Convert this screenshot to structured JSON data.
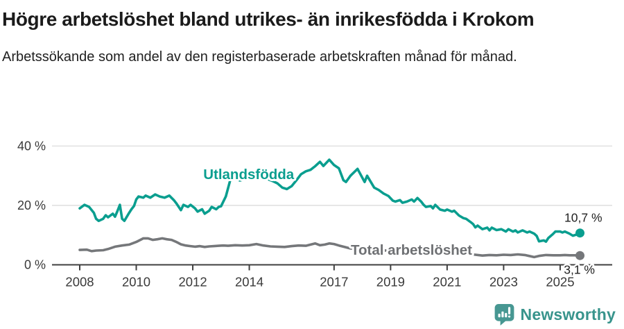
{
  "title": "Högre arbetslöshet bland utrikes- än inrikesfödda i Krokom",
  "subtitle": "Arbetssökande som andel av den registerbaserade arbetskraften månad för månad.",
  "footer": {
    "brand": "Newsworthy"
  },
  "colors": {
    "foreign_line": "#0a9e8f",
    "total_line": "#75777a",
    "total_label": "#6e7073",
    "value_label": "#1f1f1f",
    "axis": "#3f3f3f",
    "axis_text": "#3a3a3a",
    "grid": "#dcdcdc",
    "brand": "#38948c"
  },
  "chart_data": {
    "type": "line",
    "title": "Högre arbetslöshet bland utrikes- än inrikesfödda i Krokom",
    "subtitle": "Arbetssökande som andel av den registerbaserade arbetskraften månad för månad.",
    "unit": "%",
    "ylim": [
      0,
      40
    ],
    "xlim": [
      2007.5,
      2026.3
    ],
    "grid": "horizontal-only",
    "legend_position": "inline-labels",
    "colors": {
      "grid": "#dcdcdc",
      "axis": "#3f3f3f",
      "axis_text": "#3a3a3a"
    },
    "y_axis": {
      "ticks": [
        {
          "value": 0,
          "label": "0 %"
        },
        {
          "value": 20,
          "label": "20 %"
        },
        {
          "value": 40,
          "label": "40 %"
        }
      ]
    },
    "x_axis": {
      "ticks": [
        {
          "value": 2008,
          "label": "2008"
        },
        {
          "value": 2010,
          "label": "2010"
        },
        {
          "value": 2012,
          "label": "2012"
        },
        {
          "value": 2014,
          "label": "2014"
        },
        {
          "value": 2017,
          "label": "2017"
        },
        {
          "value": 2019,
          "label": "2019"
        },
        {
          "value": 2021,
          "label": "2021"
        },
        {
          "value": 2023,
          "label": "2023"
        },
        {
          "value": 2025,
          "label": "2025"
        }
      ]
    },
    "series": [
      {
        "id": "utlandsfodda",
        "name": "Utlandsfödda",
        "color": "#0a9e8f",
        "end_value_label": "10,7 %",
        "points": [
          [
            2008.0,
            19.0
          ],
          [
            2008.17,
            20.2
          ],
          [
            2008.33,
            19.5
          ],
          [
            2008.5,
            17.5
          ],
          [
            2008.58,
            15.5
          ],
          [
            2008.67,
            14.8
          ],
          [
            2008.83,
            15.5
          ],
          [
            2008.92,
            16.7
          ],
          [
            2009.0,
            16.0
          ],
          [
            2009.17,
            17.2
          ],
          [
            2009.25,
            16.2
          ],
          [
            2009.33,
            18.0
          ],
          [
            2009.42,
            20.2
          ],
          [
            2009.5,
            15.5
          ],
          [
            2009.58,
            14.8
          ],
          [
            2009.75,
            17.5
          ],
          [
            2009.83,
            18.7
          ],
          [
            2009.92,
            19.8
          ],
          [
            2010.0,
            22.0
          ],
          [
            2010.08,
            23.0
          ],
          [
            2010.25,
            22.6
          ],
          [
            2010.33,
            23.3
          ],
          [
            2010.5,
            22.6
          ],
          [
            2010.67,
            23.7
          ],
          [
            2010.83,
            23.0
          ],
          [
            2011.0,
            22.6
          ],
          [
            2011.17,
            23.3
          ],
          [
            2011.33,
            21.8
          ],
          [
            2011.42,
            20.7
          ],
          [
            2011.58,
            18.4
          ],
          [
            2011.67,
            20.2
          ],
          [
            2011.83,
            19.5
          ],
          [
            2011.92,
            20.2
          ],
          [
            2012.08,
            19.0
          ],
          [
            2012.17,
            17.9
          ],
          [
            2012.33,
            18.7
          ],
          [
            2012.42,
            17.2
          ],
          [
            2012.58,
            18.2
          ],
          [
            2012.67,
            19.5
          ],
          [
            2012.83,
            18.7
          ],
          [
            2012.92,
            19.5
          ],
          [
            2013.0,
            19.7
          ],
          [
            2013.17,
            23.0
          ],
          [
            2013.33,
            28.7
          ],
          [
            2013.5,
            29.0
          ],
          [
            2013.67,
            28.4
          ],
          [
            2013.83,
            28.8
          ],
          [
            2014.0,
            29.5
          ],
          [
            2014.17,
            30.0
          ],
          [
            2014.33,
            29.0
          ],
          [
            2014.5,
            29.6
          ],
          [
            2014.67,
            28.8
          ],
          [
            2014.83,
            28.2
          ],
          [
            2015.0,
            27.4
          ],
          [
            2015.17,
            26.0
          ],
          [
            2015.33,
            25.5
          ],
          [
            2015.5,
            26.5
          ],
          [
            2015.67,
            28.5
          ],
          [
            2015.83,
            30.5
          ],
          [
            2016.0,
            31.5
          ],
          [
            2016.17,
            32.0
          ],
          [
            2016.33,
            33.2
          ],
          [
            2016.5,
            34.7
          ],
          [
            2016.62,
            33.3
          ],
          [
            2016.83,
            35.4
          ],
          [
            2017.0,
            33.6
          ],
          [
            2017.17,
            32.5
          ],
          [
            2017.33,
            28.5
          ],
          [
            2017.42,
            27.9
          ],
          [
            2017.58,
            30.0
          ],
          [
            2017.83,
            32.3
          ],
          [
            2018.08,
            27.9
          ],
          [
            2018.17,
            30.0
          ],
          [
            2018.42,
            26.0
          ],
          [
            2018.58,
            25.2
          ],
          [
            2018.75,
            24.0
          ],
          [
            2018.92,
            23.2
          ],
          [
            2019.08,
            21.6
          ],
          [
            2019.17,
            21.3
          ],
          [
            2019.33,
            21.8
          ],
          [
            2019.42,
            20.9
          ],
          [
            2019.58,
            21.3
          ],
          [
            2019.75,
            22.0
          ],
          [
            2019.83,
            21.3
          ],
          [
            2019.95,
            22.5
          ],
          [
            2020.08,
            21.3
          ],
          [
            2020.17,
            20.2
          ],
          [
            2020.25,
            19.5
          ],
          [
            2020.42,
            19.8
          ],
          [
            2020.5,
            19.0
          ],
          [
            2020.58,
            20.2
          ],
          [
            2020.75,
            18.6
          ],
          [
            2020.92,
            18.2
          ],
          [
            2021.0,
            18.6
          ],
          [
            2021.17,
            17.9
          ],
          [
            2021.25,
            18.2
          ],
          [
            2021.42,
            16.6
          ],
          [
            2021.58,
            15.7
          ],
          [
            2021.67,
            15.5
          ],
          [
            2021.83,
            14.4
          ],
          [
            2021.92,
            13.7
          ],
          [
            2022.0,
            12.6
          ],
          [
            2022.08,
            13.2
          ],
          [
            2022.25,
            12.0
          ],
          [
            2022.42,
            12.5
          ],
          [
            2022.5,
            11.6
          ],
          [
            2022.58,
            12.5
          ],
          [
            2022.75,
            11.7
          ],
          [
            2022.92,
            12.0
          ],
          [
            2023.08,
            11.2
          ],
          [
            2023.17,
            12.0
          ],
          [
            2023.33,
            11.2
          ],
          [
            2023.42,
            11.6
          ],
          [
            2023.5,
            10.9
          ],
          [
            2023.67,
            11.6
          ],
          [
            2023.83,
            10.9
          ],
          [
            2023.92,
            11.2
          ],
          [
            2024.08,
            10.5
          ],
          [
            2024.17,
            9.7
          ],
          [
            2024.25,
            7.9
          ],
          [
            2024.42,
            8.2
          ],
          [
            2024.5,
            7.8
          ],
          [
            2024.58,
            9.0
          ],
          [
            2024.75,
            10.4
          ],
          [
            2024.83,
            11.2
          ],
          [
            2025.0,
            11.2
          ],
          [
            2025.08,
            10.9
          ],
          [
            2025.17,
            11.2
          ],
          [
            2025.33,
            10.5
          ],
          [
            2025.45,
            9.8
          ],
          [
            2025.58,
            10.2
          ],
          [
            2025.7,
            10.7
          ]
        ]
      },
      {
        "id": "total",
        "name": "Total arbetslöshet",
        "color": "#75777a",
        "end_value_label": "3,1 %",
        "points": [
          [
            2008.0,
            5.0
          ],
          [
            2008.25,
            5.1
          ],
          [
            2008.42,
            4.6
          ],
          [
            2008.58,
            4.8
          ],
          [
            2008.83,
            4.9
          ],
          [
            2009.0,
            5.3
          ],
          [
            2009.25,
            6.1
          ],
          [
            2009.5,
            6.5
          ],
          [
            2009.75,
            6.8
          ],
          [
            2010.0,
            7.7
          ],
          [
            2010.17,
            8.5
          ],
          [
            2010.25,
            8.9
          ],
          [
            2010.42,
            8.9
          ],
          [
            2010.58,
            8.4
          ],
          [
            2010.75,
            8.6
          ],
          [
            2010.92,
            8.9
          ],
          [
            2011.08,
            8.6
          ],
          [
            2011.25,
            8.4
          ],
          [
            2011.42,
            7.7
          ],
          [
            2011.58,
            6.9
          ],
          [
            2011.75,
            6.5
          ],
          [
            2011.92,
            6.3
          ],
          [
            2012.08,
            6.1
          ],
          [
            2012.25,
            6.3
          ],
          [
            2012.42,
            6.0
          ],
          [
            2012.58,
            6.2
          ],
          [
            2012.75,
            6.3
          ],
          [
            2012.92,
            6.4
          ],
          [
            2013.08,
            6.5
          ],
          [
            2013.25,
            6.4
          ],
          [
            2013.5,
            6.6
          ],
          [
            2013.75,
            6.5
          ],
          [
            2014.0,
            6.6
          ],
          [
            2014.25,
            7.0
          ],
          [
            2014.5,
            6.5
          ],
          [
            2014.75,
            6.2
          ],
          [
            2015.0,
            6.1
          ],
          [
            2015.25,
            6.0
          ],
          [
            2015.5,
            6.3
          ],
          [
            2015.75,
            6.5
          ],
          [
            2016.0,
            6.4
          ],
          [
            2016.17,
            6.8
          ],
          [
            2016.33,
            7.2
          ],
          [
            2016.5,
            6.6
          ],
          [
            2016.67,
            6.8
          ],
          [
            2016.83,
            7.2
          ],
          [
            2017.0,
            7.0
          ],
          [
            2017.17,
            6.5
          ],
          [
            2017.33,
            6.1
          ],
          [
            2017.58,
            5.5
          ],
          [
            2017.83,
            5.3
          ],
          [
            2018.0,
            5.2
          ],
          [
            2018.5,
            5.0
          ],
          [
            2019.0,
            4.7
          ],
          [
            2019.5,
            4.5
          ],
          [
            2020.0,
            4.7
          ],
          [
            2020.5,
            4.4
          ],
          [
            2021.0,
            4.1
          ],
          [
            2021.5,
            3.8
          ],
          [
            2022.0,
            3.4
          ],
          [
            2022.25,
            3.1
          ],
          [
            2022.5,
            3.3
          ],
          [
            2022.75,
            3.2
          ],
          [
            2023.0,
            3.4
          ],
          [
            2023.25,
            3.3
          ],
          [
            2023.5,
            3.5
          ],
          [
            2023.75,
            3.3
          ],
          [
            2024.08,
            2.6
          ],
          [
            2024.25,
            3.0
          ],
          [
            2024.5,
            3.3
          ],
          [
            2024.75,
            3.2
          ],
          [
            2025.0,
            3.2
          ],
          [
            2025.17,
            3.3
          ],
          [
            2025.33,
            3.2
          ],
          [
            2025.5,
            3.2
          ],
          [
            2025.7,
            3.1
          ]
        ]
      }
    ],
    "annotations": [
      {
        "name": "series-label-utlandsfodda",
        "text": "Utlandsfödda",
        "x": 2013.98,
        "y": 28.9,
        "color": "#0a9e8f",
        "size": 20.5,
        "weight": "bold",
        "halo": true
      },
      {
        "name": "series-label-total",
        "text": "Total arbetslöshet",
        "x": 2019.74,
        "y": 3.4,
        "color": "#6e7073",
        "size": 20.5,
        "weight": "bold",
        "halo": true
      },
      {
        "name": "value-label-utlandsfodda",
        "text": "10,7 %",
        "x": 2025.82,
        "y": 14.5,
        "color": "#1f1f1f",
        "size": 17.5,
        "weight": "normal",
        "halo": false
      },
      {
        "name": "value-label-total",
        "text": "3,1 %",
        "x": 2025.68,
        "y": -3.0,
        "color": "#1f1f1f",
        "size": 17.5,
        "weight": "normal",
        "halo": true
      }
    ]
  }
}
